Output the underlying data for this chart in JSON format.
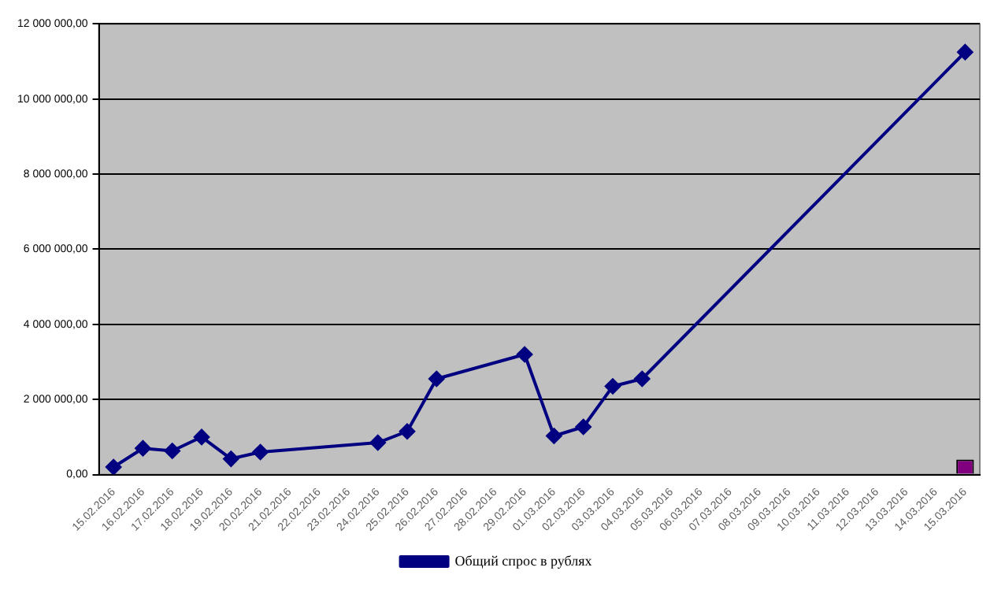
{
  "chart_data": {
    "type": "line",
    "categories": [
      "15.02.2016",
      "16.02.2016",
      "17.02.2016",
      "18.02.2016",
      "19.02.2016",
      "20.02.2016",
      "21.02.2016",
      "22.02.2016",
      "23.02.2016",
      "24.02.2016",
      "25.02.2016",
      "26.02.2016",
      "27.02.2016",
      "28.02.2016",
      "29.02.2016",
      "01.03.2016",
      "02.03.2016",
      "03.03.2016",
      "04.03.2016",
      "05.03.2016",
      "06.03.2016",
      "07.03.2016",
      "08.03.2016",
      "09.03.2016",
      "10.03.2016",
      "11.03.2016",
      "12.03.2016",
      "13.03.2016",
      "14.03.2016",
      "15.03.2016"
    ],
    "series": [
      {
        "type": "bar",
        "color": "#800080",
        "values": [
          null,
          null,
          null,
          null,
          null,
          null,
          null,
          null,
          null,
          null,
          null,
          null,
          null,
          null,
          null,
          null,
          null,
          null,
          null,
          null,
          null,
          null,
          null,
          null,
          null,
          null,
          null,
          null,
          null,
          400000
        ]
      },
      {
        "name": "Общий спрос в рублях",
        "color": "#000080",
        "values": [
          200000,
          700000,
          630000,
          1000000,
          420000,
          600000,
          null,
          null,
          null,
          850000,
          1150000,
          2550000,
          null,
          null,
          3200000,
          1030000,
          1270000,
          2350000,
          2550000,
          null,
          null,
          null,
          null,
          null,
          null,
          null,
          null,
          null,
          null,
          11250000
        ]
      }
    ],
    "ylim": [
      0,
      12000000
    ],
    "yticks": [
      {
        "value": 0,
        "label": "0,00"
      },
      {
        "value": 2000000,
        "label": "2 000 000,00"
      },
      {
        "value": 4000000,
        "label": "4 000 000,00"
      },
      {
        "value": 6000000,
        "label": "6 000 000,00"
      },
      {
        "value": 8000000,
        "label": "8 000 000,00"
      },
      {
        "value": 10000000,
        "label": "10 000 000,00"
      },
      {
        "value": 12000000,
        "label": "12 000 000,00"
      }
    ],
    "grid": "y",
    "legend": "bottom",
    "marker": "diamond",
    "line_style": "solid"
  }
}
